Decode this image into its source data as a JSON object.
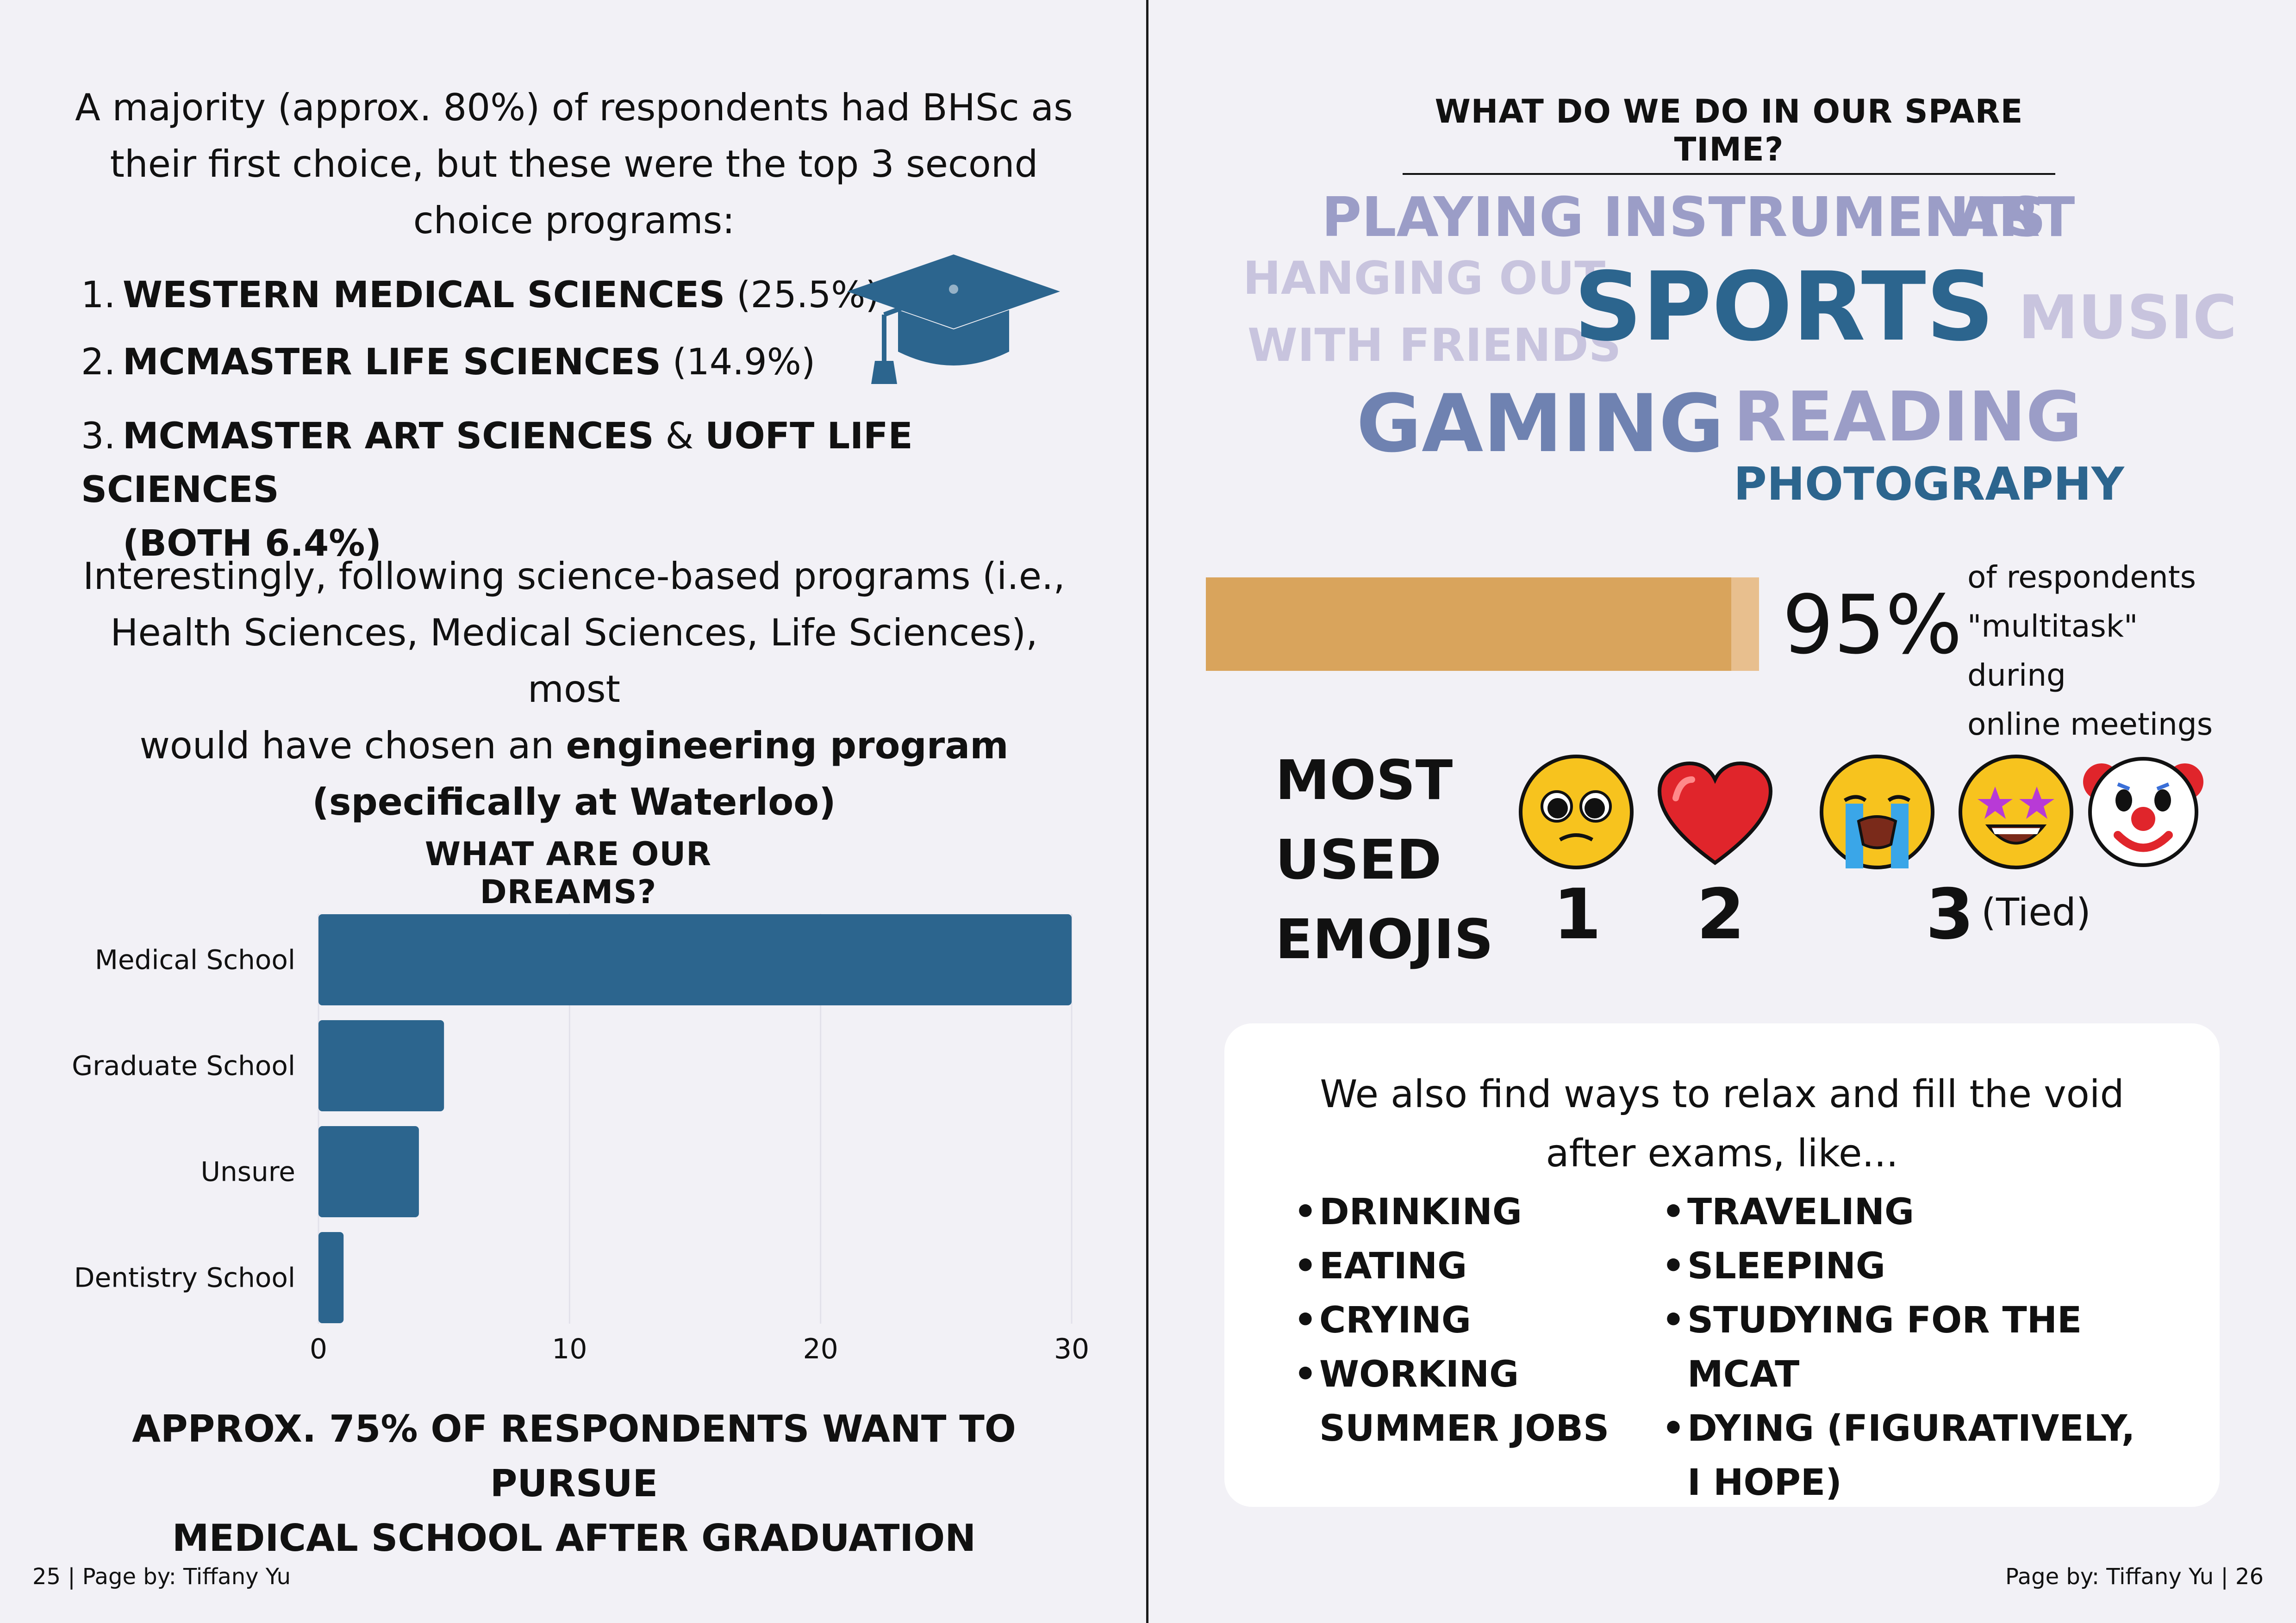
{
  "left_page": {
    "intro": {
      "line1": "A majority (approx. 80%) of respondents had BHSc as",
      "line2": "their first choice, but these were the top 3 second",
      "line3": "choice programs:"
    },
    "top_programs": [
      {
        "num": "1.",
        "name": "Western Medical Sciences",
        "detail": "(25.5%)"
      },
      {
        "num": "2.",
        "name": "McMaster Life Sciences",
        "detail": "(14.9%)"
      },
      {
        "num": "3.",
        "name": "McMaster Art Sciences",
        "conj": "&",
        "name2": "UofT Life Sciences",
        "detail": "(BOTH 6.4%)"
      }
    ],
    "icon": "graduation-cap-icon",
    "interest": {
      "line1": "Interestingly, following science-based programs (i.e.,",
      "line2": "Health Sciences, Medical Sciences, Life Sciences), most",
      "line3_pre": "would have chosen an",
      "line3_bold": "engineering program",
      "line4": "(specifically at Waterloo)"
    },
    "dreams_title": "What are our dreams?",
    "dreams_note": {
      "line1": "Approx. 75% of respondents want to pursue",
      "line2": "medical school after graduation"
    },
    "footer": "25 | Page by: Tiffany Yu"
  },
  "chart_data": {
    "type": "bar",
    "orientation": "horizontal",
    "title": "What are our dreams?",
    "categories": [
      "Medical School",
      "Graduate School",
      "Unsure",
      "Dentistry School"
    ],
    "values": [
      30,
      5,
      4,
      1
    ],
    "xlim": [
      0,
      30
    ],
    "xticks": [
      "0",
      "10",
      "20",
      "30"
    ],
    "grid": true,
    "color": "#2c658e"
  },
  "right_page": {
    "spare_title": "What do we do in our spare time?",
    "word_cloud": {
      "playing": "Playing Instruments",
      "art": "Art",
      "hanging1": "Hanging out",
      "hanging2": "with friends",
      "sports": "Sports",
      "music": "Music",
      "gaming": "Gaming",
      "reading": "Reading",
      "photography": "Photography"
    },
    "colors": {
      "lavender": "#9b9dc7",
      "light_lavender": "#c8c4de",
      "navy": "#2c658e",
      "slate": "#6f82b1",
      "bar": "#d9a45c",
      "bar_track": "#e8bf8e"
    },
    "multitask": {
      "percent_label": "95%",
      "percent_value": 0.95,
      "note_line1": "of respondents",
      "note_line2": "\"multitask\" during",
      "note_line3": "online meetings"
    },
    "emojis": {
      "title_line1": "Most",
      "title_line2": "used",
      "title_line3": "emojis",
      "items": [
        "pleading-face-icon",
        "red-heart-icon",
        "loudly-crying-face-icon",
        "star-struck-icon",
        "clown-face-icon"
      ],
      "rank1": "1",
      "rank2": "2",
      "rank3": "3",
      "tied": "(Tied)"
    },
    "relax": {
      "line1": "We also find ways to relax and fill the void",
      "line2": "after exams, like...",
      "col1": [
        "Drinking",
        "Eating",
        "Crying",
        "Working summer jobs"
      ],
      "col2": [
        "Traveling",
        "Sleeping",
        "Studying for the MCAT",
        "Dying (figuratively, I hope)"
      ]
    },
    "footer": "Page by: Tiffany Yu | 26"
  }
}
